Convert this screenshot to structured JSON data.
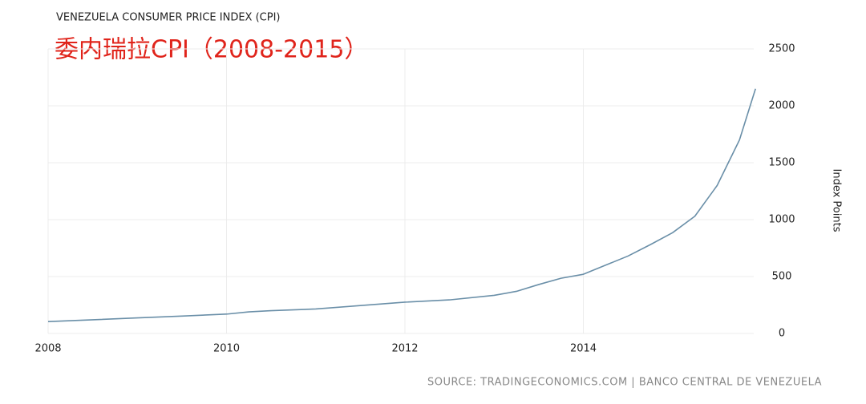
{
  "chart_data": {
    "type": "line",
    "title": "VENEZUELA CONSUMER PRICE INDEX (CPI)",
    "subtitle": "委内瑞拉CPI（2008-2015）",
    "y_label": "Index Points",
    "source": "SOURCE: TRADINGECONOMICS.COM | BANCO CENTRAL DE VENEZUELA",
    "x": [
      2008,
      2008.5,
      2009,
      2009.5,
      2010,
      2010.25,
      2010.5,
      2011,
      2011.5,
      2012,
      2012.5,
      2013,
      2013.25,
      2013.5,
      2013.75,
      2014,
      2014.25,
      2014.5,
      2014.75,
      2015,
      2015.25,
      2015.5,
      2015.75,
      2015.93
    ],
    "series": [
      {
        "name": "CPI",
        "color": "#6a8fa8",
        "values": [
          104,
          120,
          137,
          153,
          170,
          190,
          200,
          215,
          245,
          275,
          295,
          335,
          370,
          430,
          485,
          520,
          600,
          680,
          780,
          885,
          1030,
          1300,
          1700,
          2150
        ]
      }
    ],
    "xlim": [
      2008,
      2016
    ],
    "ylim": [
      0,
      2500
    ],
    "xticks": [
      2008,
      2010,
      2012,
      2014
    ],
    "yticks": [
      0,
      500,
      1000,
      1500,
      2000,
      2500
    ],
    "grid": true
  }
}
